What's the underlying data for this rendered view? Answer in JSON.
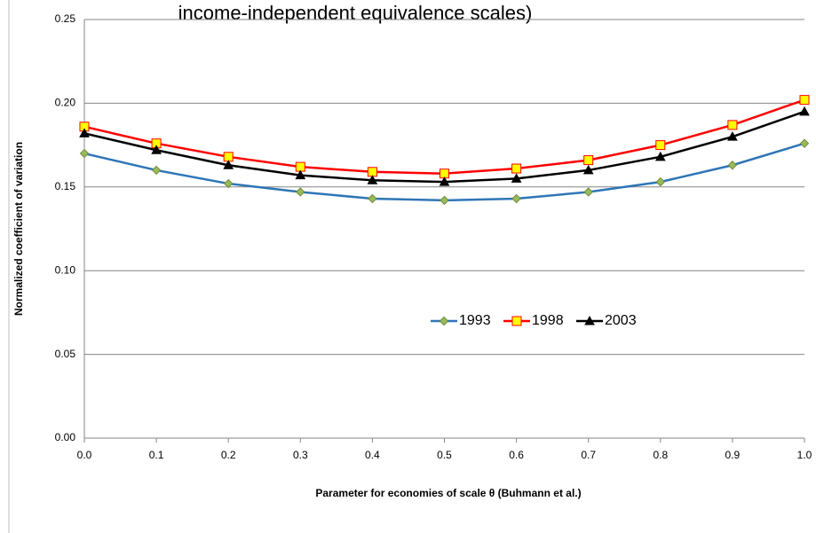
{
  "chart_data": {
    "type": "line",
    "title": "income-independent equivalence scales)",
    "x_label": "Parameter for economies of scale θ (Buhmann et al.)",
    "y_label": "Normalized coefficient of variation",
    "x": [
      0,
      0.1,
      0.2,
      0.3,
      0.4,
      0.5,
      0.6,
      0.7,
      0.8,
      0.9,
      1.0
    ],
    "series": [
      {
        "name": "1993",
        "color": "#2e75b6",
        "marker": "diamond",
        "marker_color": "#9bbb59",
        "values": [
          0.17,
          0.16,
          0.152,
          0.147,
          0.143,
          0.142,
          0.143,
          0.147,
          0.153,
          0.163,
          0.176
        ]
      },
      {
        "name": "1998",
        "color": "#ff0000",
        "marker": "square",
        "marker_color": "#ffff00",
        "values": [
          0.186,
          0.176,
          0.168,
          0.162,
          0.159,
          0.158,
          0.161,
          0.166,
          0.175,
          0.187,
          0.202
        ]
      },
      {
        "name": "2003",
        "color": "#000000",
        "marker": "triangle",
        "marker_color": "#000000",
        "values": [
          0.182,
          0.172,
          0.163,
          0.157,
          0.154,
          0.153,
          0.155,
          0.16,
          0.168,
          0.18,
          0.195
        ]
      }
    ],
    "xlim": [
      0,
      1
    ],
    "xticks": [
      {
        "value": 0,
        "label": "0.0"
      },
      {
        "value": 0.1,
        "label": "0.1"
      },
      {
        "value": 0.2,
        "label": "0.2"
      },
      {
        "value": 0.3,
        "label": "0.3"
      },
      {
        "value": 0.4,
        "label": "0.4"
      },
      {
        "value": 0.5,
        "label": "0.5"
      },
      {
        "value": 0.6,
        "label": "0.6"
      },
      {
        "value": 0.7,
        "label": "0.7"
      },
      {
        "value": 0.8,
        "label": "0.8"
      },
      {
        "value": 0.9,
        "label": "0.9"
      },
      {
        "value": 1.0,
        "label": "1.0"
      }
    ],
    "ylim": [
      0,
      0.25
    ],
    "yticks": [
      {
        "value": 0,
        "label": "0.00"
      },
      {
        "value": 0.05,
        "label": "0.05"
      },
      {
        "value": 0.1,
        "label": "0.10"
      },
      {
        "value": 0.15,
        "label": "0.15"
      },
      {
        "value": 0.2,
        "label": "0.20"
      },
      {
        "value": 0.25,
        "label": "0.25"
      }
    ],
    "grid": true,
    "legend": "center"
  }
}
